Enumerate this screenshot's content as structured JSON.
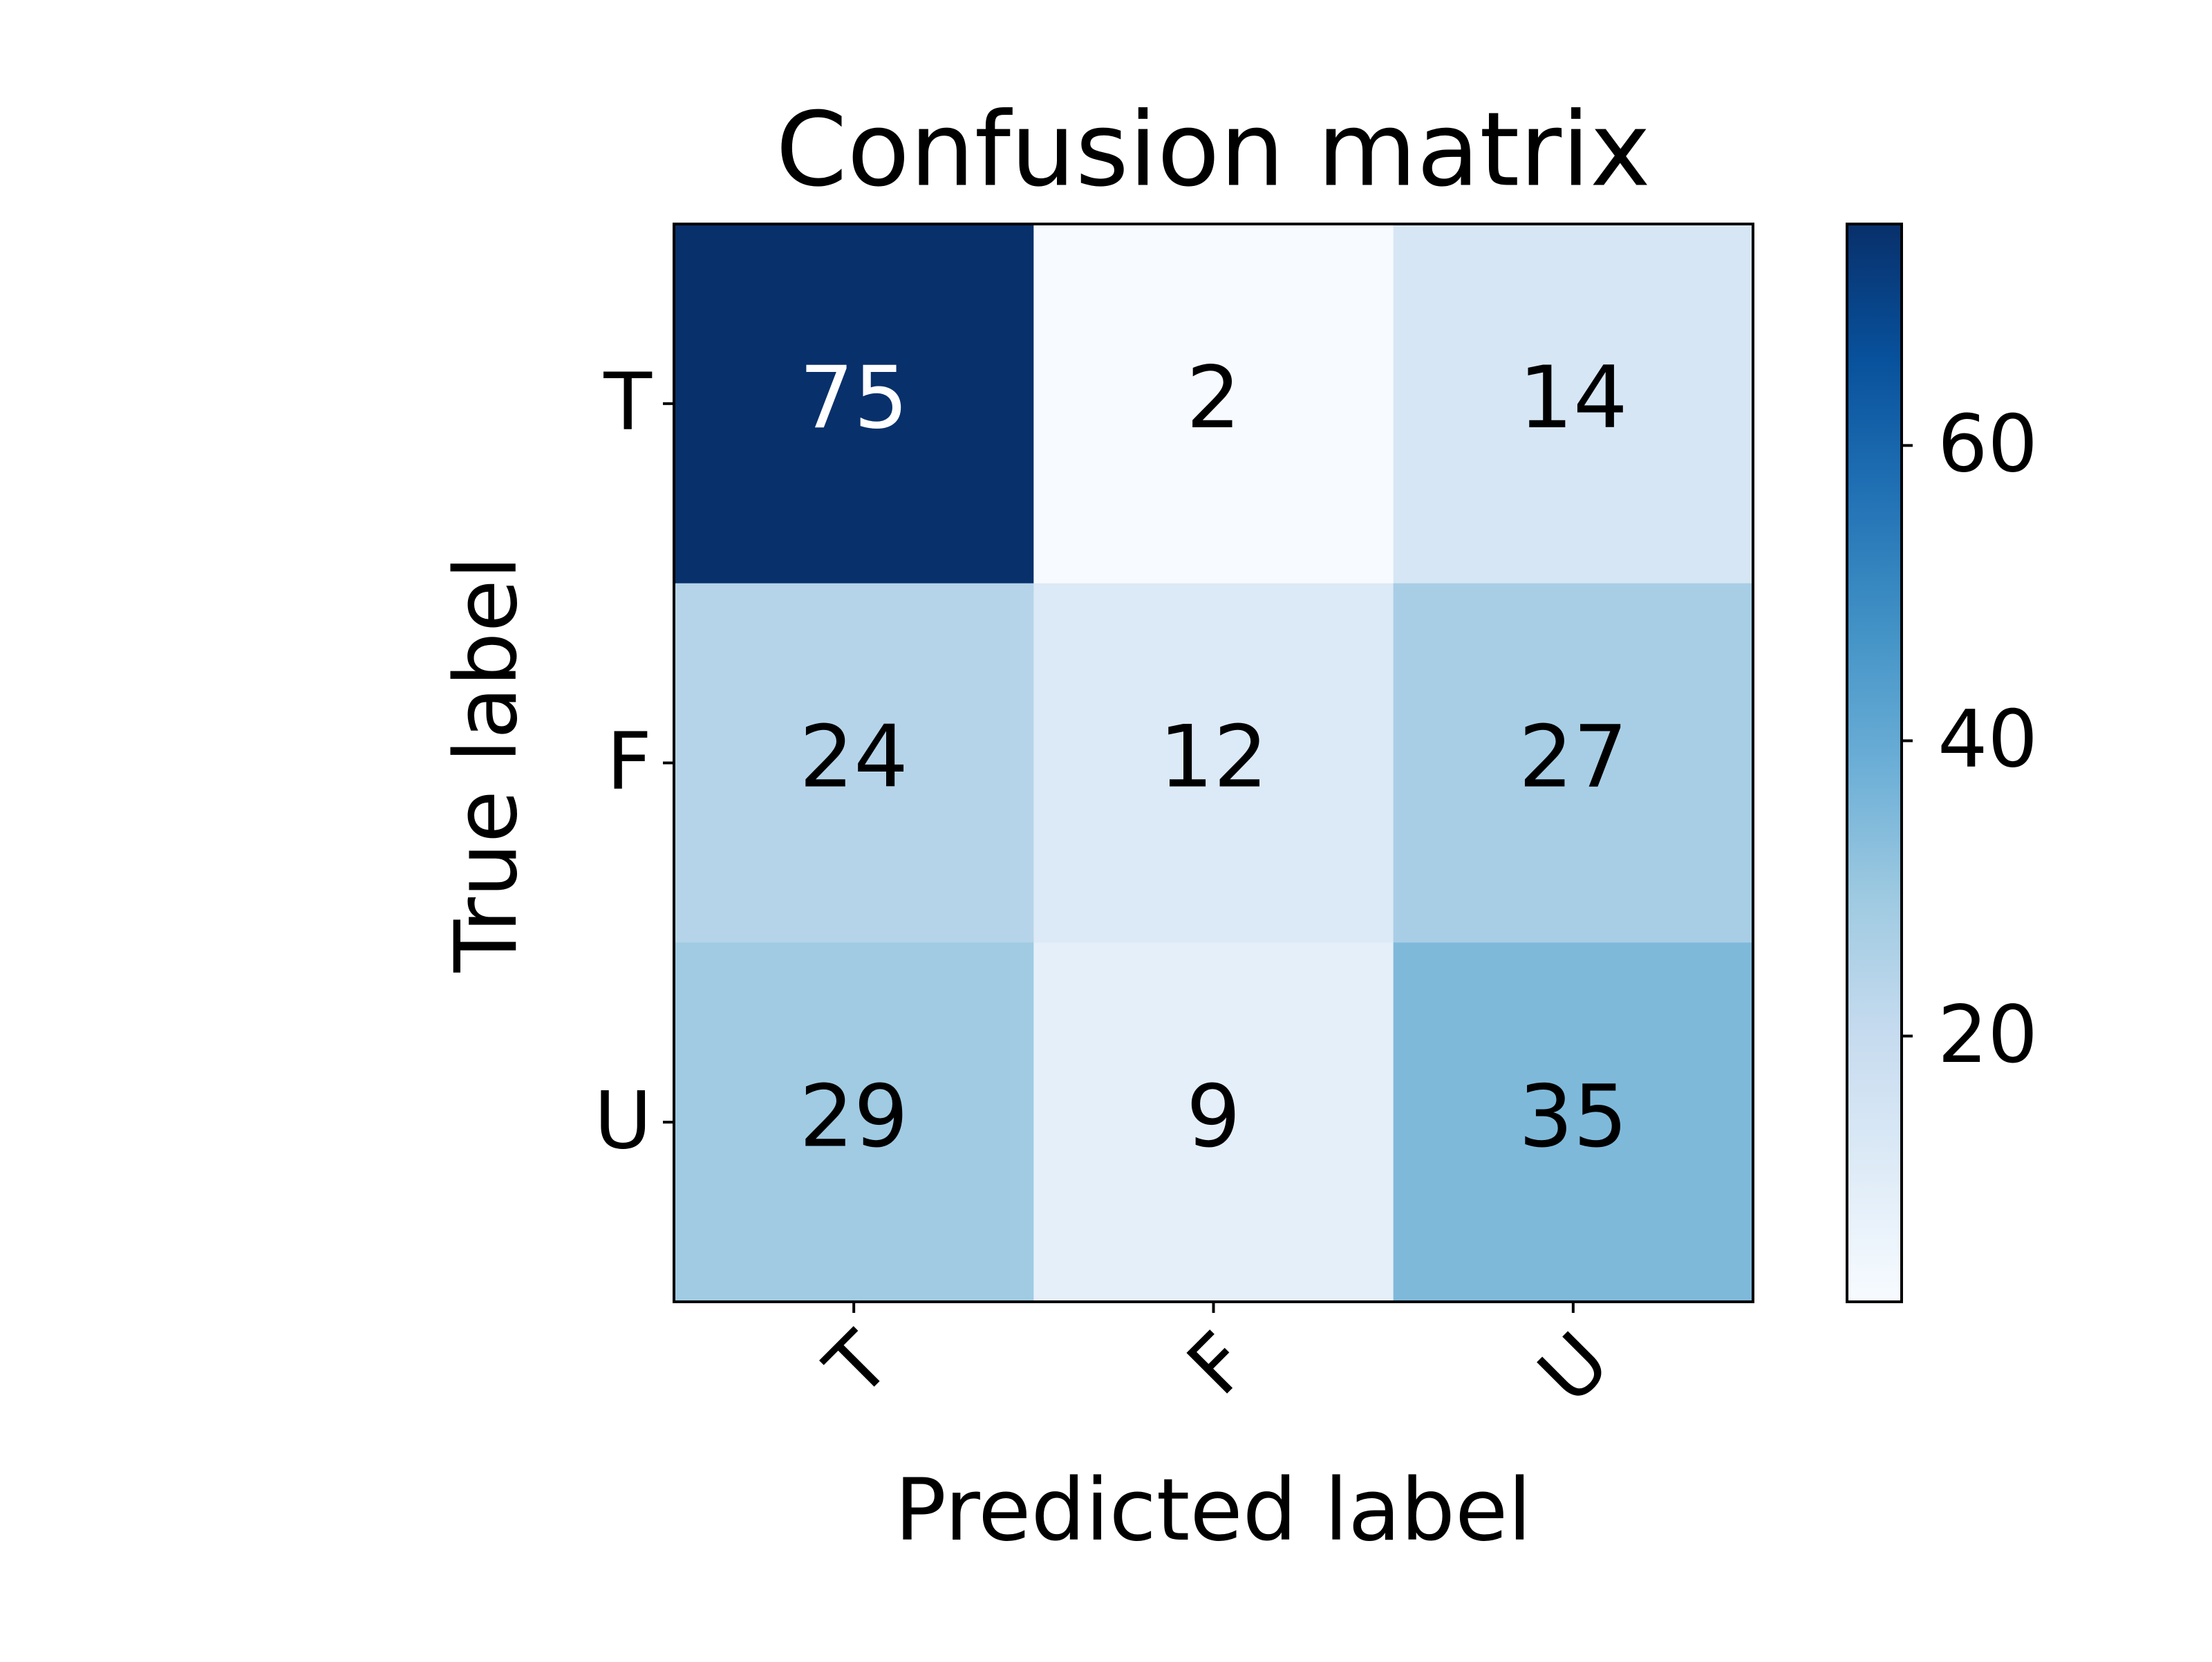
{
  "chart_data": {
    "type": "heatmap",
    "title": "Confusion matrix",
    "x_label": "Predicted label",
    "y_label": "True label",
    "x_categories": [
      "T",
      "F",
      "U"
    ],
    "y_categories": [
      "T",
      "F",
      "U"
    ],
    "values": [
      [
        75,
        2,
        14
      ],
      [
        24,
        12,
        27
      ],
      [
        29,
        9,
        35
      ]
    ],
    "colormap": "Blues",
    "clim": [
      2,
      75
    ],
    "colorbar_ticks": [
      20,
      40,
      60
    ]
  }
}
